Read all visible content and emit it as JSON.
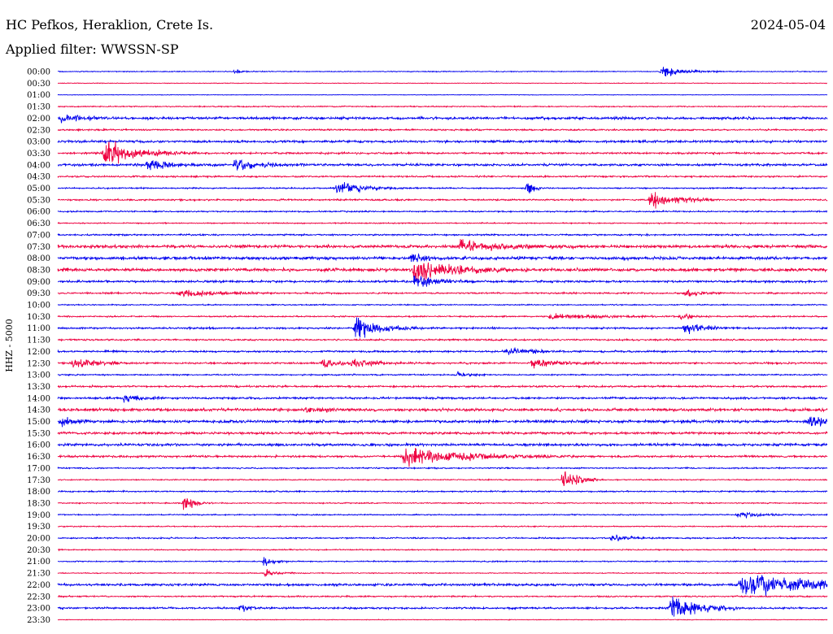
{
  "station": "HC Pefkos, Heraklion, Crete Is.",
  "date": "2024-05-04",
  "filter": "Applied filter: WWSSN-SP",
  "axis_label": "HHZ  -  5000",
  "colors": {
    "blue": "#0000ee",
    "red": "#ee0040",
    "background": "#ffffff"
  },
  "chart_data": {
    "type": "line",
    "title": "HC Pefkos, Heraklion, Crete Is.",
    "date": "2024-05-04",
    "ylabel": "HHZ  -  5000",
    "xlabel": "",
    "row_labels": [
      "00:00",
      "00:30",
      "01:00",
      "01:30",
      "02:00",
      "02:30",
      "03:00",
      "03:30",
      "04:00",
      "04:30",
      "05:00",
      "05:30",
      "06:00",
      "06:30",
      "07:00",
      "07:30",
      "08:00",
      "08:30",
      "09:00",
      "09:30",
      "10:00",
      "10:30",
      "11:00",
      "11:30",
      "12:00",
      "12:30",
      "13:00",
      "13:30",
      "14:00",
      "14:30",
      "15:00",
      "15:30",
      "16:00",
      "16:30",
      "17:00",
      "17:30",
      "18:00",
      "18:30",
      "19:00",
      "19:30",
      "20:00",
      "20:30",
      "21:00",
      "21:30",
      "22:00",
      "22:30",
      "23:00",
      "23:30"
    ],
    "row_colors": [
      "blue",
      "red"
    ],
    "row_minutes": 30,
    "noise": [
      0.8,
      0.6,
      0.5,
      1.0,
      2.2,
      1.4,
      2.0,
      1.6,
      2.0,
      1.4,
      1.2,
      1.4,
      1.2,
      1.0,
      1.4,
      2.6,
      2.6,
      2.8,
      1.8,
      1.4,
      1.0,
      1.2,
      1.6,
      1.4,
      1.6,
      1.6,
      1.2,
      1.6,
      1.8,
      2.4,
      2.4,
      2.0,
      2.2,
      1.8,
      1.2,
      1.0,
      1.2,
      1.0,
      1.0,
      1.0,
      1.2,
      1.0,
      1.0,
      0.8,
      2.0,
      1.2,
      1.6,
      0.6
    ],
    "events": [
      {
        "row": 0,
        "minute": 23.5,
        "amplitude": 10,
        "duration": 0.8
      },
      {
        "row": 0,
        "minute": 6.9,
        "amplitude": 3,
        "duration": 0.3
      },
      {
        "row": 4,
        "minute": 0.1,
        "amplitude": 8,
        "duration": 0.7
      },
      {
        "row": 7,
        "minute": 1.8,
        "amplitude": 22,
        "duration": 1.2
      },
      {
        "row": 8,
        "minute": 3.5,
        "amplitude": 11,
        "duration": 0.9
      },
      {
        "row": 8,
        "minute": 6.9,
        "amplitude": 11,
        "duration": 0.9
      },
      {
        "row": 10,
        "minute": 10.9,
        "amplitude": 13,
        "duration": 0.9
      },
      {
        "row": 10,
        "minute": 18.3,
        "amplitude": 16,
        "duration": 0.2
      },
      {
        "row": 11,
        "minute": 23.1,
        "amplitude": 16,
        "duration": 0.9
      },
      {
        "row": 15,
        "minute": 15.7,
        "amplitude": 10,
        "duration": 1.5
      },
      {
        "row": 16,
        "minute": 13.8,
        "amplitude": 9,
        "duration": 0.4
      },
      {
        "row": 17,
        "minute": 13.9,
        "amplitude": 22,
        "duration": 1.3
      },
      {
        "row": 18,
        "minute": 13.9,
        "amplitude": 12,
        "duration": 0.8
      },
      {
        "row": 19,
        "minute": 4.7,
        "amplitude": 7,
        "duration": 1.3
      },
      {
        "row": 19,
        "minute": 24.5,
        "amplitude": 6,
        "duration": 0.5
      },
      {
        "row": 21,
        "minute": 19.2,
        "amplitude": 5,
        "duration": 1.8
      },
      {
        "row": 21,
        "minute": 24.3,
        "amplitude": 5,
        "duration": 0.4
      },
      {
        "row": 22,
        "minute": 11.6,
        "amplitude": 18,
        "duration": 0.9
      },
      {
        "row": 22,
        "minute": 24.4,
        "amplitude": 10,
        "duration": 0.7
      },
      {
        "row": 24,
        "minute": 17.5,
        "amplitude": 6,
        "duration": 0.9
      },
      {
        "row": 25,
        "minute": 0.6,
        "amplitude": 9,
        "duration": 0.8
      },
      {
        "row": 25,
        "minute": 10.3,
        "amplitude": 8,
        "duration": 0.7
      },
      {
        "row": 25,
        "minute": 11.5,
        "amplitude": 8,
        "duration": 0.7
      },
      {
        "row": 25,
        "minute": 18.5,
        "amplitude": 8,
        "duration": 0.9
      },
      {
        "row": 26,
        "minute": 15.6,
        "amplitude": 6,
        "duration": 0.4
      },
      {
        "row": 28,
        "minute": 2.6,
        "amplitude": 6,
        "duration": 0.6
      },
      {
        "row": 29,
        "minute": 9.7,
        "amplitude": 7,
        "duration": 0.7
      },
      {
        "row": 30,
        "minute": 0.1,
        "amplitude": 8,
        "duration": 0.5
      },
      {
        "row": 30,
        "minute": 29.3,
        "amplitude": 9,
        "duration": 0.7
      },
      {
        "row": 33,
        "minute": 13.5,
        "amplitude": 16,
        "duration": 2.2
      },
      {
        "row": 35,
        "minute": 19.7,
        "amplitude": 26,
        "duration": 0.5
      },
      {
        "row": 37,
        "minute": 4.9,
        "amplitude": 14,
        "duration": 0.4
      },
      {
        "row": 38,
        "minute": 26.5,
        "amplitude": 5,
        "duration": 1.0
      },
      {
        "row": 40,
        "minute": 21.6,
        "amplitude": 6,
        "duration": 0.6
      },
      {
        "row": 42,
        "minute": 8.0,
        "amplitude": 8,
        "duration": 0.4
      },
      {
        "row": 43,
        "minute": 8.1,
        "amplitude": 6,
        "duration": 0.4
      },
      {
        "row": 44,
        "minute": 26.6,
        "amplitude": 20,
        "duration": 3.5
      },
      {
        "row": 46,
        "minute": 7.1,
        "amplitude": 8,
        "duration": 0.4
      },
      {
        "row": 46,
        "minute": 23.9,
        "amplitude": 26,
        "duration": 0.9
      }
    ]
  }
}
